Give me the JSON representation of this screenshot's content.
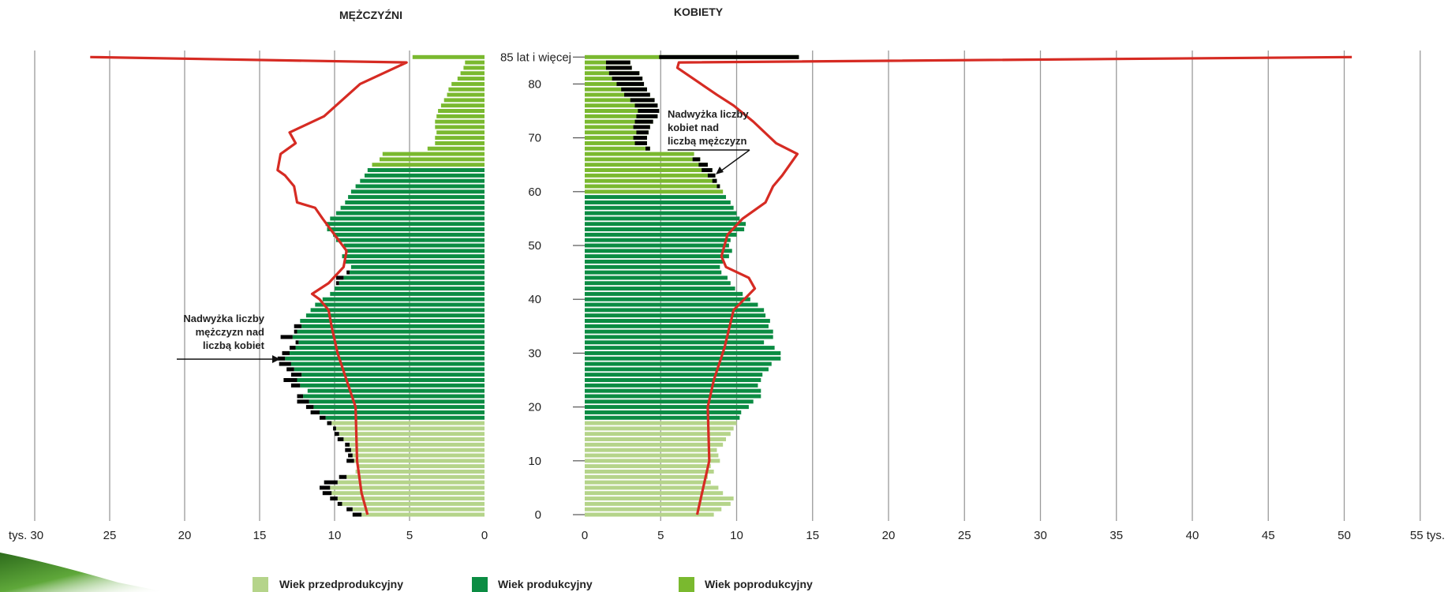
{
  "chart_data": {
    "type": "bar",
    "subtype": "population-pyramid",
    "panels": [
      {
        "title": "MĘŻCZYŹNI",
        "side": "left"
      },
      {
        "title": "KOBIETY",
        "side": "right"
      }
    ],
    "x_ticks_left": [
      "tys. 30",
      "25",
      "20",
      "15",
      "10",
      "5",
      "0"
    ],
    "x_ticks_right": [
      "0",
      "5",
      "10",
      "15",
      "20",
      "25",
      "30",
      "35",
      "40",
      "45",
      "50",
      "55 tys."
    ],
    "x_left_max": 30,
    "x_right_max": 55,
    "y_ticks": [
      "0",
      "10",
      "20",
      "30",
      "40",
      "50",
      "60",
      "70",
      "80",
      "85 lat i więcej"
    ],
    "y_tick_values": [
      0,
      10,
      20,
      30,
      40,
      50,
      60,
      70,
      80,
      85
    ],
    "ages": [
      0,
      1,
      2,
      3,
      4,
      5,
      6,
      7,
      8,
      9,
      10,
      11,
      12,
      13,
      14,
      15,
      16,
      17,
      18,
      19,
      20,
      21,
      22,
      23,
      24,
      25,
      26,
      27,
      28,
      29,
      30,
      31,
      32,
      33,
      34,
      35,
      36,
      37,
      38,
      39,
      40,
      41,
      42,
      43,
      44,
      45,
      46,
      47,
      48,
      49,
      50,
      51,
      52,
      53,
      54,
      55,
      56,
      57,
      58,
      59,
      60,
      61,
      62,
      63,
      64,
      65,
      66,
      67,
      68,
      69,
      70,
      71,
      72,
      73,
      74,
      75,
      76,
      77,
      78,
      79,
      80,
      81,
      82,
      83,
      84,
      85
    ],
    "series": [
      {
        "name": "Wiek przedprodukcyjny",
        "color": "#b5d48a"
      },
      {
        "name": "Wiek produkcyjny",
        "color": "#0b8c43"
      },
      {
        "name": "Wiek poprodukcyjny",
        "color": "#7ab92f"
      }
    ],
    "men": [
      8.2,
      8.8,
      9.5,
      9.8,
      10.2,
      10.3,
      9.8,
      9.2,
      8.6,
      8.4,
      8.7,
      8.8,
      8.9,
      9.0,
      9.4,
      9.7,
      9.9,
      10.2,
      10.6,
      11.0,
      11.4,
      11.7,
      12.1,
      11.8,
      12.3,
      12.5,
      12.2,
      12.7,
      12.9,
      13.3,
      13.0,
      12.6,
      12.4,
      12.8,
      12.5,
      12.2,
      12.3,
      11.9,
      11.6,
      11.3,
      10.8,
      10.3,
      10.0,
      9.7,
      9.4,
      9.0,
      8.9,
      9.3,
      9.5,
      9.3,
      9.4,
      9.9,
      10.1,
      10.5,
      10.6,
      10.3,
      9.9,
      9.6,
      9.3,
      9.1,
      8.9,
      8.6,
      8.3,
      8.0,
      7.8,
      7.5,
      7.0,
      6.8,
      3.8,
      3.3,
      3.3,
      3.2,
      3.3,
      3.3,
      3.2,
      3.1,
      2.9,
      2.7,
      2.5,
      2.4,
      2.2,
      1.8,
      1.6,
      1.4,
      1.3,
      4.8
    ],
    "women": [
      8.5,
      9.0,
      9.6,
      9.8,
      9.1,
      8.8,
      8.3,
      8.1,
      8.5,
      8.3,
      8.9,
      8.8,
      8.7,
      9.1,
      9.3,
      9.6,
      9.8,
      10.0,
      10.2,
      10.3,
      10.8,
      11.1,
      11.6,
      11.6,
      11.4,
      11.6,
      11.7,
      12.1,
      12.3,
      12.9,
      12.9,
      12.5,
      11.8,
      12.4,
      12.4,
      12.1,
      12.2,
      11.9,
      11.8,
      11.4,
      10.9,
      10.4,
      9.9,
      9.6,
      9.4,
      9.0,
      8.9,
      9.1,
      9.5,
      9.7,
      9.5,
      9.6,
      10.0,
      10.5,
      10.6,
      10.2,
      10.0,
      9.8,
      9.6,
      9.3,
      9.1,
      8.9,
      8.7,
      8.6,
      8.4,
      8.1,
      7.6,
      7.2,
      4.3,
      4.1,
      4.1,
      4.2,
      4.3,
      4.5,
      4.8,
      4.9,
      4.8,
      4.6,
      4.3,
      4.1,
      3.9,
      3.8,
      3.6,
      3.1,
      3.0,
      14.1
    ],
    "surplus_men": [
      {
        "age": 45,
        "value": 0.2
      },
      {
        "age": 44,
        "value": 0.5
      },
      {
        "age": 43,
        "value": 0.2
      },
      {
        "age": 35,
        "value": 0.5
      },
      {
        "age": 34,
        "value": 0.2
      },
      {
        "age": 33,
        "value": 0.8
      },
      {
        "age": 32,
        "value": 0.2
      },
      {
        "age": 31,
        "value": 0.4
      },
      {
        "age": 30,
        "value": 0.5
      },
      {
        "age": 29,
        "value": 0.5
      },
      {
        "age": 28,
        "value": 0.8
      },
      {
        "age": 27,
        "value": 0.5
      },
      {
        "age": 26,
        "value": 0.7
      },
      {
        "age": 25,
        "value": 0.9
      },
      {
        "age": 24,
        "value": 0.6
      },
      {
        "age": 22,
        "value": 0.4
      },
      {
        "age": 21,
        "value": 0.8
      },
      {
        "age": 20,
        "value": 0.5
      },
      {
        "age": 19,
        "value": 0.6
      },
      {
        "age": 18,
        "value": 0.4
      },
      {
        "age": 17,
        "value": 0.3
      },
      {
        "age": 16,
        "value": 0.2
      },
      {
        "age": 15,
        "value": 0.3
      },
      {
        "age": 14,
        "value": 0.4
      },
      {
        "age": 13,
        "value": 0.3
      },
      {
        "age": 12,
        "value": 0.4
      },
      {
        "age": 11,
        "value": 0.3
      },
      {
        "age": 10,
        "value": 0.5
      },
      {
        "age": 7,
        "value": 0.5
      },
      {
        "age": 6,
        "value": 0.9
      },
      {
        "age": 5,
        "value": 0.7
      },
      {
        "age": 4,
        "value": 0.6
      },
      {
        "age": 3,
        "value": 0.5
      },
      {
        "age": 2,
        "value": 0.3
      },
      {
        "age": 1,
        "value": 0.4
      },
      {
        "age": 0,
        "value": 0.6
      }
    ],
    "surplus_women": [
      {
        "age": 66,
        "value": 0.5
      },
      {
        "age": 65,
        "value": 0.6
      },
      {
        "age": 64,
        "value": 0.7
      },
      {
        "age": 63,
        "value": 0.5
      },
      {
        "age": 62,
        "value": 0.3
      },
      {
        "age": 61,
        "value": 0.2
      },
      {
        "age": 68,
        "value": 0.3
      },
      {
        "age": 69,
        "value": 0.8
      },
      {
        "age": 70,
        "value": 0.9
      },
      {
        "age": 71,
        "value": 0.8
      },
      {
        "age": 72,
        "value": 1.1
      },
      {
        "age": 73,
        "value": 1.2
      },
      {
        "age": 74,
        "value": 1.4
      },
      {
        "age": 75,
        "value": 1.4
      },
      {
        "age": 76,
        "value": 1.5
      },
      {
        "age": 77,
        "value": 1.6
      },
      {
        "age": 78,
        "value": 1.7
      },
      {
        "age": 79,
        "value": 1.7
      },
      {
        "age": 80,
        "value": 1.8
      },
      {
        "age": 81,
        "value": 2.0
      },
      {
        "age": 82,
        "value": 2.0
      },
      {
        "age": 83,
        "value": 1.7
      },
      {
        "age": 84,
        "value": 1.6
      },
      {
        "age": 85,
        "value": 9.2
      }
    ],
    "line_men": [
      [
        7.8,
        0
      ],
      [
        8.2,
        4
      ],
      [
        8.5,
        10
      ],
      [
        8.6,
        20
      ],
      [
        9.2,
        25
      ],
      [
        9.8,
        30
      ],
      [
        10.2,
        35
      ],
      [
        10.4,
        38
      ],
      [
        11.0,
        40
      ],
      [
        11.5,
        41
      ],
      [
        10.4,
        43
      ],
      [
        9.4,
        46
      ],
      [
        9.2,
        49
      ],
      [
        10.0,
        52
      ],
      [
        10.8,
        55
      ],
      [
        11.3,
        57
      ],
      [
        12.5,
        58
      ],
      [
        12.7,
        61
      ],
      [
        13.3,
        63
      ],
      [
        13.8,
        64
      ],
      [
        13.6,
        67
      ],
      [
        12.6,
        69
      ],
      [
        13.0,
        71
      ],
      [
        10.7,
        74
      ],
      [
        8.3,
        80
      ],
      [
        5.2,
        84
      ],
      [
        26.3,
        85
      ]
    ],
    "line_women": [
      [
        7.4,
        0
      ],
      [
        8.2,
        10
      ],
      [
        8.1,
        20
      ],
      [
        8.5,
        25
      ],
      [
        9.2,
        31
      ],
      [
        9.8,
        38
      ],
      [
        10.5,
        40
      ],
      [
        11.2,
        42
      ],
      [
        10.8,
        44
      ],
      [
        9.3,
        46
      ],
      [
        9.0,
        48
      ],
      [
        9.4,
        52
      ],
      [
        10.4,
        55
      ],
      [
        11.9,
        58
      ],
      [
        12.4,
        61
      ],
      [
        13.0,
        63
      ],
      [
        14.0,
        67
      ],
      [
        12.6,
        69
      ],
      [
        11.1,
        73
      ],
      [
        9.8,
        76
      ],
      [
        8.7,
        78
      ],
      [
        6.1,
        83
      ],
      [
        6.2,
        84
      ],
      [
        50.5,
        85
      ]
    ],
    "legend": {
      "position": "bottom"
    },
    "annotations": [
      {
        "lines": [
          "Nadwyżka liczby",
          "mężczyzn nad",
          "liczbą kobiet"
        ]
      },
      {
        "lines": [
          "Nadwyżka liczby",
          "kobiet nad",
          "liczbą mężczyzn"
        ]
      }
    ],
    "line_color": "#d62b23",
    "surplus_color": "#000000"
  }
}
